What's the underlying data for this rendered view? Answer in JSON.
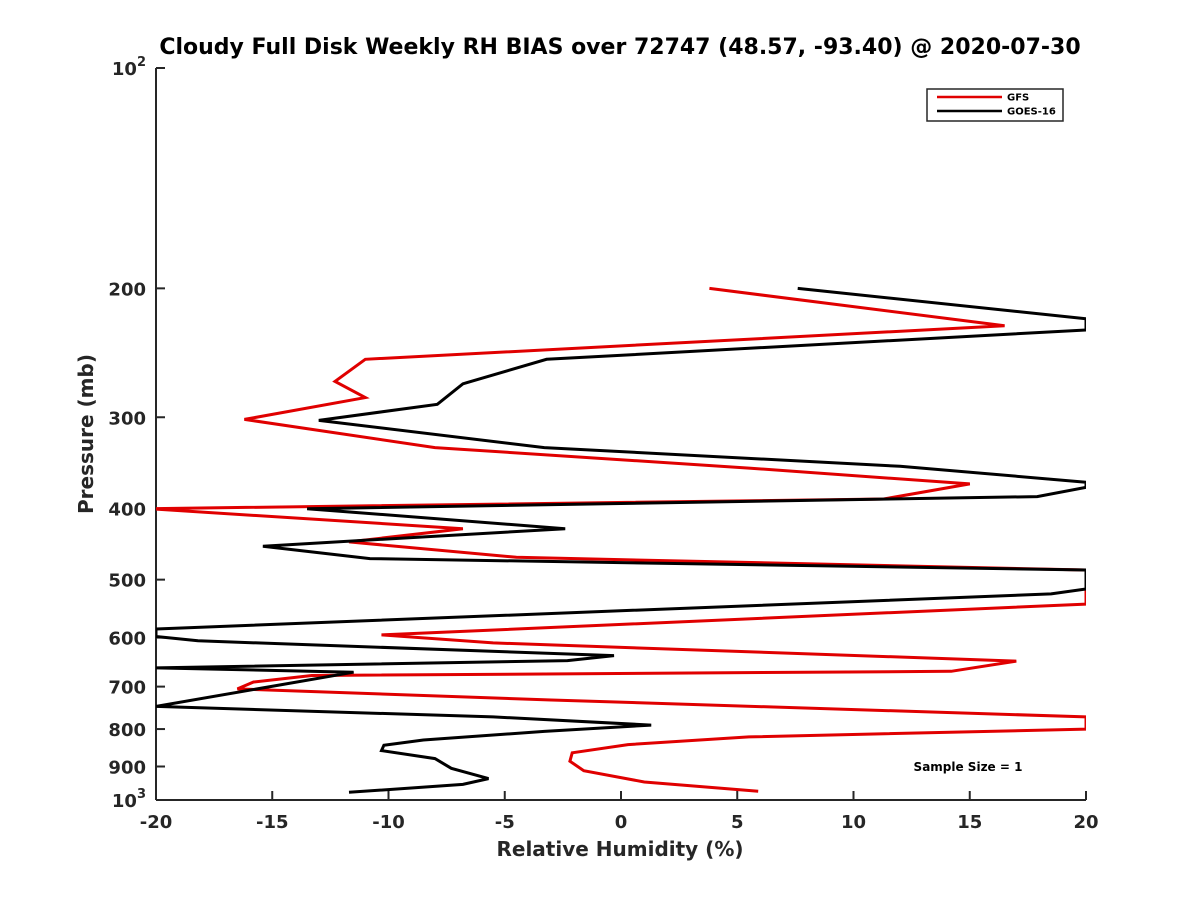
{
  "chart_data": {
    "type": "line",
    "title": "Cloudy Full Disk Weekly RH BIAS over 72747 (48.57, -93.40) @ 2020-07-30",
    "xlabel": "Relative Humidity (%)",
    "ylabel": "Pressure (mb)",
    "xlim": [
      -20,
      20
    ],
    "ylim": [
      100,
      1000
    ],
    "yscale": "log",
    "y_reversed": true,
    "x_ticks": [
      "-20",
      "-15",
      "-10",
      "-5",
      "0",
      "5",
      "10",
      "15",
      "20"
    ],
    "y_ticks": [
      {
        "value": 100,
        "base": "10",
        "exp": "2"
      },
      {
        "value": 200,
        "label": "200"
      },
      {
        "value": 300,
        "label": "300"
      },
      {
        "value": 400,
        "label": "400"
      },
      {
        "value": 500,
        "label": "500"
      },
      {
        "value": 600,
        "label": "600"
      },
      {
        "value": 700,
        "label": "700"
      },
      {
        "value": 800,
        "label": "800"
      },
      {
        "value": 900,
        "label": "900"
      },
      {
        "value": 1000,
        "base": "10",
        "exp": "3"
      }
    ],
    "legend_position": "top-right",
    "annotation": "Sample Size = 1",
    "series": [
      {
        "name": "GFS",
        "color": "#e00000",
        "points": [
          [
            3.8,
            200
          ],
          [
            16.5,
            225
          ],
          [
            -11,
            250
          ],
          [
            -12.3,
            268
          ],
          [
            -11,
            282
          ],
          [
            -16.2,
            302
          ],
          [
            -8,
            330
          ],
          [
            5.5,
            352
          ],
          [
            15,
            370
          ],
          [
            11.3,
            388
          ],
          [
            -20.3,
            400
          ],
          [
            -6.8,
            426
          ],
          [
            -11.7,
            444
          ],
          [
            -4.5,
            466
          ],
          [
            20,
            485
          ],
          [
            20,
            540
          ],
          [
            -10.3,
            595
          ],
          [
            -5.5,
            610
          ],
          [
            17,
            646
          ],
          [
            14.2,
            667
          ],
          [
            -13.3,
            676
          ],
          [
            -15.8,
            690
          ],
          [
            -16.5,
            705
          ],
          [
            -3,
            730
          ],
          [
            20,
            770
          ],
          [
            20,
            800
          ],
          [
            5.5,
            820
          ],
          [
            0.3,
            840
          ],
          [
            -2.1,
            862
          ],
          [
            -2.2,
            885
          ],
          [
            -1.6,
            912
          ],
          [
            1,
            945
          ],
          [
            5.9,
            973
          ]
        ]
      },
      {
        "name": "GOES-16",
        "color": "#000000",
        "points": [
          [
            7.6,
            200
          ],
          [
            20,
            220
          ],
          [
            20,
            228
          ],
          [
            -3.2,
            250
          ],
          [
            -6.8,
            270
          ],
          [
            -7.9,
            288
          ],
          [
            -13,
            303
          ],
          [
            -3.3,
            330
          ],
          [
            12,
            350
          ],
          [
            20,
            368
          ],
          [
            20,
            374
          ],
          [
            17.9,
            385
          ],
          [
            -13.5,
            400
          ],
          [
            -2.4,
            426
          ],
          [
            -15.4,
            450
          ],
          [
            -10.8,
            468
          ],
          [
            20,
            485
          ],
          [
            20,
            515
          ],
          [
            18.5,
            523
          ],
          [
            -20,
            584
          ],
          [
            -20,
            598
          ],
          [
            -18.2,
            606
          ],
          [
            -0.3,
            635
          ],
          [
            -2.3,
            645
          ],
          [
            -20,
            660
          ],
          [
            -11.5,
            669
          ],
          [
            -20,
            745
          ],
          [
            -5.5,
            770
          ],
          [
            1.3,
            790
          ],
          [
            -3.3,
            806
          ],
          [
            -8.5,
            828
          ],
          [
            -10.2,
            842
          ],
          [
            -10.3,
            856
          ],
          [
            -8,
            878
          ],
          [
            -7.3,
            905
          ],
          [
            -5.7,
            935
          ],
          [
            -6.8,
            952
          ],
          [
            -11.7,
            976
          ]
        ]
      }
    ]
  }
}
